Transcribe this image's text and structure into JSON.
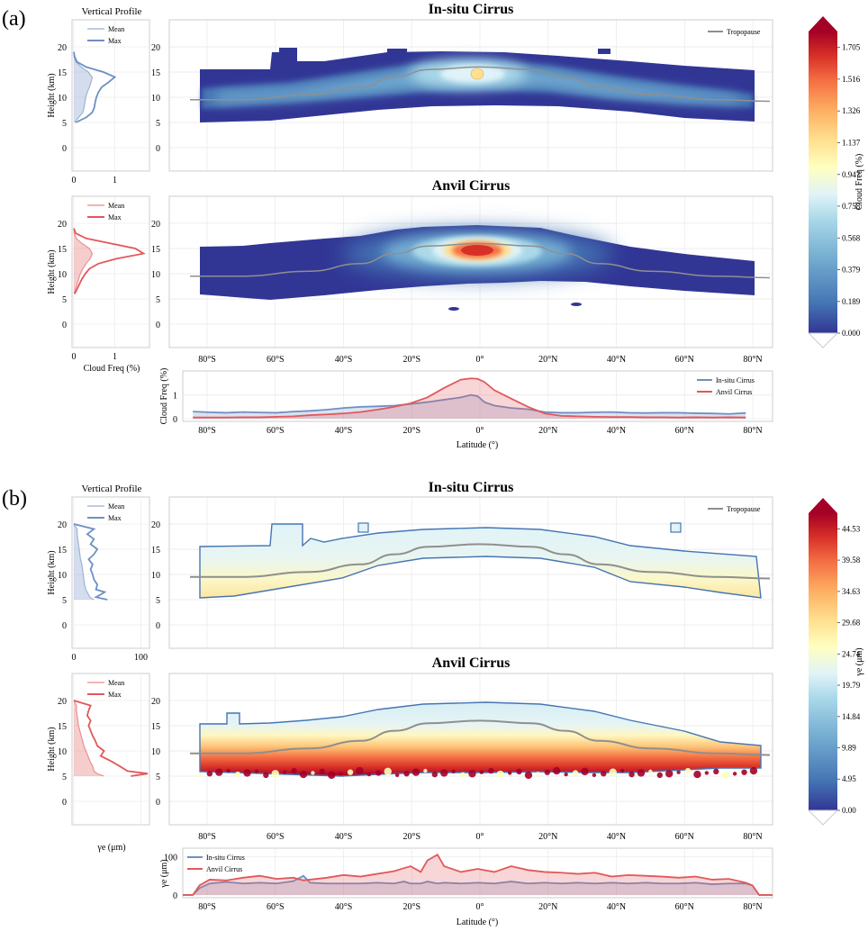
{
  "figure": {
    "panel_a_label": "(a)",
    "panel_b_label": "(b)",
    "vertical_profile_title": "Vertical Profile",
    "insitu_title": "In-situ Cirrus",
    "anvil_title": "Anvil Cirrus",
    "tropopause_legend": "Tropopause",
    "height_label": "Height (km)",
    "latitude_label": "Latitude (°)",
    "mean_label": "Mean",
    "max_label": "Max",
    "insitu_series": "In-situ Cirrus",
    "anvil_series": "Anvil Cirrus"
  },
  "colors": {
    "insitu": "#6e8fc4",
    "anvil": "#e2585a",
    "tropopause": "#8f8f8f",
    "colormap": [
      "#313695",
      "#4575b4",
      "#74add1",
      "#abd9e9",
      "#e0f3f8",
      "#ffffbf",
      "#fee090",
      "#fdae61",
      "#f46d43",
      "#d73027",
      "#a50026"
    ]
  },
  "chart_data": [
    {
      "type": "heatmap",
      "panel": "(a)",
      "variable": "Cloud Freq (%)",
      "colorbar": {
        "label": "Cloud Freq (%)",
        "ticks": [
          "0.000",
          "0.189",
          "0.379",
          "0.568",
          "0.758",
          "0.947",
          "1.137",
          "1.326",
          "1.516",
          "1.705"
        ],
        "range": [
          0,
          1.8
        ]
      },
      "height_ticks": [
        "0",
        "5",
        "10",
        "15",
        "20"
      ],
      "latitude_ticks": [
        "80°S",
        "60°S",
        "40°S",
        "20°S",
        "0°",
        "20°N",
        "40°N",
        "60°N",
        "80°N"
      ],
      "insitu": {
        "peak_value": 1.0,
        "peak_lat": 0,
        "peak_height": 14,
        "cloud_base_km": [
          5,
          7
        ],
        "cloud_top_km": [
          15,
          18.5
        ],
        "profile_xlabel": "",
        "profile_xticks": [
          "0",
          "1"
        ],
        "profile_xlim": [
          0,
          1.8
        ],
        "profile_heights": [
          5,
          6,
          7,
          8,
          9,
          10,
          11,
          12,
          13,
          14,
          15,
          16,
          17,
          18,
          19
        ],
        "profile_mean": [
          0.02,
          0.12,
          0.22,
          0.25,
          0.27,
          0.29,
          0.33,
          0.38,
          0.42,
          0.45,
          0.35,
          0.18,
          0.05,
          0.01,
          0
        ],
        "profile_max": [
          0.05,
          0.3,
          0.45,
          0.5,
          0.52,
          0.55,
          0.6,
          0.68,
          0.85,
          1.0,
          0.72,
          0.3,
          0.08,
          0.02,
          0
        ]
      },
      "anvil": {
        "peak_value": 1.705,
        "peak_lat": -2,
        "peak_height": 14,
        "cloud_base_km": [
          3,
          6
        ],
        "cloud_top_km": [
          12.5,
          18.5
        ],
        "profile_xlabel": "Cloud Freq (%)",
        "profile_xticks": [
          "0",
          "1"
        ],
        "profile_xlim": [
          0,
          1.8
        ],
        "profile_heights": [
          6,
          7,
          8,
          9,
          10,
          11,
          12,
          13,
          14,
          15,
          16,
          17,
          18,
          19
        ],
        "profile_mean": [
          0.01,
          0.04,
          0.08,
          0.12,
          0.16,
          0.22,
          0.3,
          0.4,
          0.45,
          0.38,
          0.2,
          0.06,
          0.01,
          0
        ],
        "profile_max": [
          0.02,
          0.08,
          0.14,
          0.2,
          0.28,
          0.38,
          0.6,
          1.05,
          1.7,
          1.5,
          0.9,
          0.3,
          0.05,
          0
        ]
      },
      "tropopause": {
        "lat": [
          -85,
          -70,
          -50,
          -35,
          -25,
          -15,
          0,
          15,
          25,
          35,
          50,
          70,
          85
        ],
        "height": [
          9.5,
          9.5,
          10.5,
          12,
          14,
          15.5,
          16,
          15.5,
          14,
          12,
          10.5,
          9.5,
          9.2
        ]
      },
      "zonal": {
        "ylabel": "Cloud Freq (%)",
        "yticks": [
          "0",
          "1"
        ],
        "ylim": [
          0,
          1.9
        ],
        "lat": [
          -85,
          -80,
          -75,
          -70,
          -65,
          -60,
          -55,
          -50,
          -45,
          -40,
          -35,
          -30,
          -25,
          -20,
          -15,
          -10,
          -5,
          -2,
          0,
          2,
          5,
          10,
          15,
          20,
          25,
          30,
          35,
          40,
          45,
          50,
          55,
          60,
          65,
          70,
          75,
          80
        ],
        "insitu": [
          0.3,
          0.27,
          0.25,
          0.28,
          0.26,
          0.25,
          0.3,
          0.33,
          0.38,
          0.45,
          0.5,
          0.52,
          0.55,
          0.62,
          0.7,
          0.8,
          0.9,
          1.0,
          0.95,
          0.7,
          0.55,
          0.45,
          0.4,
          0.28,
          0.25,
          0.25,
          0.27,
          0.28,
          0.25,
          0.24,
          0.25,
          0.25,
          0.23,
          0.22,
          0.2,
          0.24
        ],
        "anvil": [
          0.05,
          0.05,
          0.05,
          0.06,
          0.06,
          0.08,
          0.1,
          0.15,
          0.18,
          0.22,
          0.28,
          0.38,
          0.5,
          0.65,
          0.9,
          1.3,
          1.65,
          1.7,
          1.68,
          1.55,
          1.2,
          0.85,
          0.5,
          0.22,
          0.12,
          0.1,
          0.08,
          0.07,
          0.07,
          0.06,
          0.06,
          0.05,
          0.06,
          0.05,
          0.06,
          0.05
        ]
      }
    },
    {
      "type": "heatmap",
      "panel": "(b)",
      "variable": "γe (μm)",
      "colorbar": {
        "label": "γe (μm)",
        "ticks": [
          "0.00",
          "4.95",
          "9.89",
          "14.84",
          "19.79",
          "24.74",
          "29.68",
          "34.63",
          "39.58",
          "44.53"
        ],
        "range": [
          0,
          47
        ]
      },
      "height_ticks": [
        "0",
        "5",
        "10",
        "15",
        "20"
      ],
      "latitude_ticks": [
        "80°S",
        "60°S",
        "40°S",
        "20°S",
        "0°",
        "20°N",
        "40°N",
        "60°N",
        "80°N"
      ],
      "insitu": {
        "profile_xlabel": "",
        "profile_xticks": [
          "0",
          "100"
        ],
        "profile_xlim": [
          0,
          110
        ],
        "profile_heights": [
          5,
          5.5,
          6,
          6.5,
          7,
          8,
          9,
          10,
          11,
          12,
          13,
          14,
          15,
          16,
          17,
          18,
          19,
          20
        ],
        "profile_mean": [
          30,
          24,
          22,
          20,
          18,
          16,
          15,
          14,
          13,
          12,
          10,
          9,
          8,
          7,
          6,
          5,
          5,
          0
        ],
        "profile_max": [
          50,
          33,
          40,
          46,
          33,
          35,
          30,
          28,
          25,
          28,
          22,
          30,
          35,
          25,
          30,
          20,
          30,
          0
        ]
      },
      "anvil": {
        "profile_xlabel": "γe (μm)",
        "profile_xticks": [
          "0",
          "100"
        ],
        "profile_xlim": [
          0,
          110
        ],
        "profile_heights": [
          5,
          5.5,
          6,
          7,
          8,
          9,
          10,
          11,
          12,
          13,
          14,
          15,
          16,
          17,
          18,
          19,
          20
        ],
        "profile_mean": [
          45,
          35,
          30,
          28,
          24,
          21,
          18,
          15,
          13,
          11,
          9,
          7,
          6,
          5,
          4,
          4,
          0
        ],
        "profile_max": [
          85,
          110,
          80,
          68,
          55,
          40,
          45,
          35,
          32,
          28,
          25,
          22,
          25,
          20,
          22,
          25,
          0
        ]
      },
      "tropopause": {
        "lat": [
          -85,
          -70,
          -50,
          -35,
          -25,
          -15,
          0,
          15,
          25,
          35,
          50,
          70,
          85
        ],
        "height": [
          9.5,
          9.5,
          10.5,
          12,
          14,
          15.5,
          16,
          15.5,
          14,
          12,
          10.5,
          9.5,
          9.2
        ]
      },
      "zonal": {
        "ylabel": "γe (μm)",
        "yticks": [
          "0",
          "100"
        ],
        "ylim": [
          0,
          115
        ],
        "lat": [
          -88,
          -85,
          -83,
          -80,
          -75,
          -70,
          -65,
          -60,
          -55,
          -52,
          -50,
          -45,
          -40,
          -35,
          -30,
          -25,
          -22,
          -20,
          -17,
          -15,
          -12,
          -10,
          -5,
          0,
          5,
          10,
          15,
          20,
          25,
          30,
          35,
          40,
          45,
          50,
          55,
          60,
          65,
          70,
          75,
          80,
          82,
          84,
          88
        ],
        "insitu": [
          0,
          0,
          18,
          30,
          34,
          30,
          32,
          30,
          36,
          50,
          32,
          30,
          30,
          30,
          32,
          30,
          35,
          30,
          30,
          35,
          30,
          32,
          30,
          32,
          30,
          35,
          30,
          32,
          30,
          32,
          30,
          32,
          30,
          32,
          30,
          30,
          32,
          28,
          30,
          30,
          25,
          0,
          0
        ],
        "anvil": [
          0,
          0,
          25,
          40,
          38,
          45,
          50,
          42,
          45,
          38,
          40,
          45,
          52,
          48,
          55,
          62,
          70,
          75,
          60,
          90,
          105,
          75,
          60,
          68,
          60,
          75,
          65,
          60,
          58,
          55,
          58,
          48,
          52,
          50,
          48,
          45,
          48,
          40,
          42,
          32,
          25,
          0,
          0
        ]
      }
    }
  ]
}
